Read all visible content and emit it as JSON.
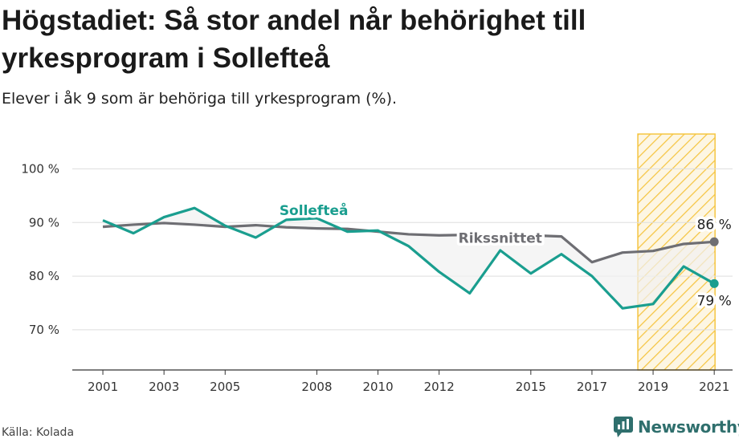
{
  "header": {
    "title": "Högstadiet: Så stor andel når behörighet till yrkesprogram i Sollefteå",
    "subtitle": "Elever i åk 9 som är behöriga till yrkesprogram (%)."
  },
  "footer": {
    "source": "Källa: Kolada",
    "brand": "Newsworthy"
  },
  "colors": {
    "local": "#1a9e8f",
    "national": "#6e6e73",
    "highlight": "#f5c542",
    "grid": "#dddddd"
  },
  "chart_data": {
    "type": "line",
    "x": [
      2001,
      2002,
      2003,
      2004,
      2005,
      2006,
      2007,
      2008,
      2009,
      2010,
      2011,
      2012,
      2013,
      2014,
      2015,
      2016,
      2017,
      2018,
      2019,
      2020,
      2021
    ],
    "x_tick_labels": [
      "2001",
      "2003",
      "2005",
      "2008",
      "2010",
      "2012",
      "2015",
      "2017",
      "2019",
      "2021"
    ],
    "y_ticks": [
      70,
      80,
      90,
      100
    ],
    "y_tick_labels": [
      "70 %",
      "80 %",
      "90 %",
      "100 %"
    ],
    "ylim": [
      62.5,
      106.5
    ],
    "xlim": [
      2000,
      2021.6
    ],
    "grid": true,
    "highlight_years": [
      2019,
      2021
    ],
    "series": [
      {
        "name": "Sollefteå",
        "values": [
          90.4,
          88.0,
          91.0,
          92.7,
          89.4,
          87.2,
          90.5,
          90.8,
          88.3,
          88.5,
          85.6,
          80.8,
          76.8,
          84.8,
          80.5,
          84.1,
          80.0,
          74.0,
          74.8,
          81.8,
          78.6
        ],
        "end_label": "79 %"
      },
      {
        "name": "Rikssnittet",
        "values": [
          89.2,
          89.6,
          89.9,
          89.6,
          89.2,
          89.5,
          89.1,
          88.9,
          88.8,
          88.3,
          87.8,
          87.6,
          87.7,
          87.4,
          87.6,
          87.4,
          82.6,
          84.4,
          84.7,
          86.0,
          86.4
        ],
        "end_label": "86 %"
      }
    ]
  }
}
